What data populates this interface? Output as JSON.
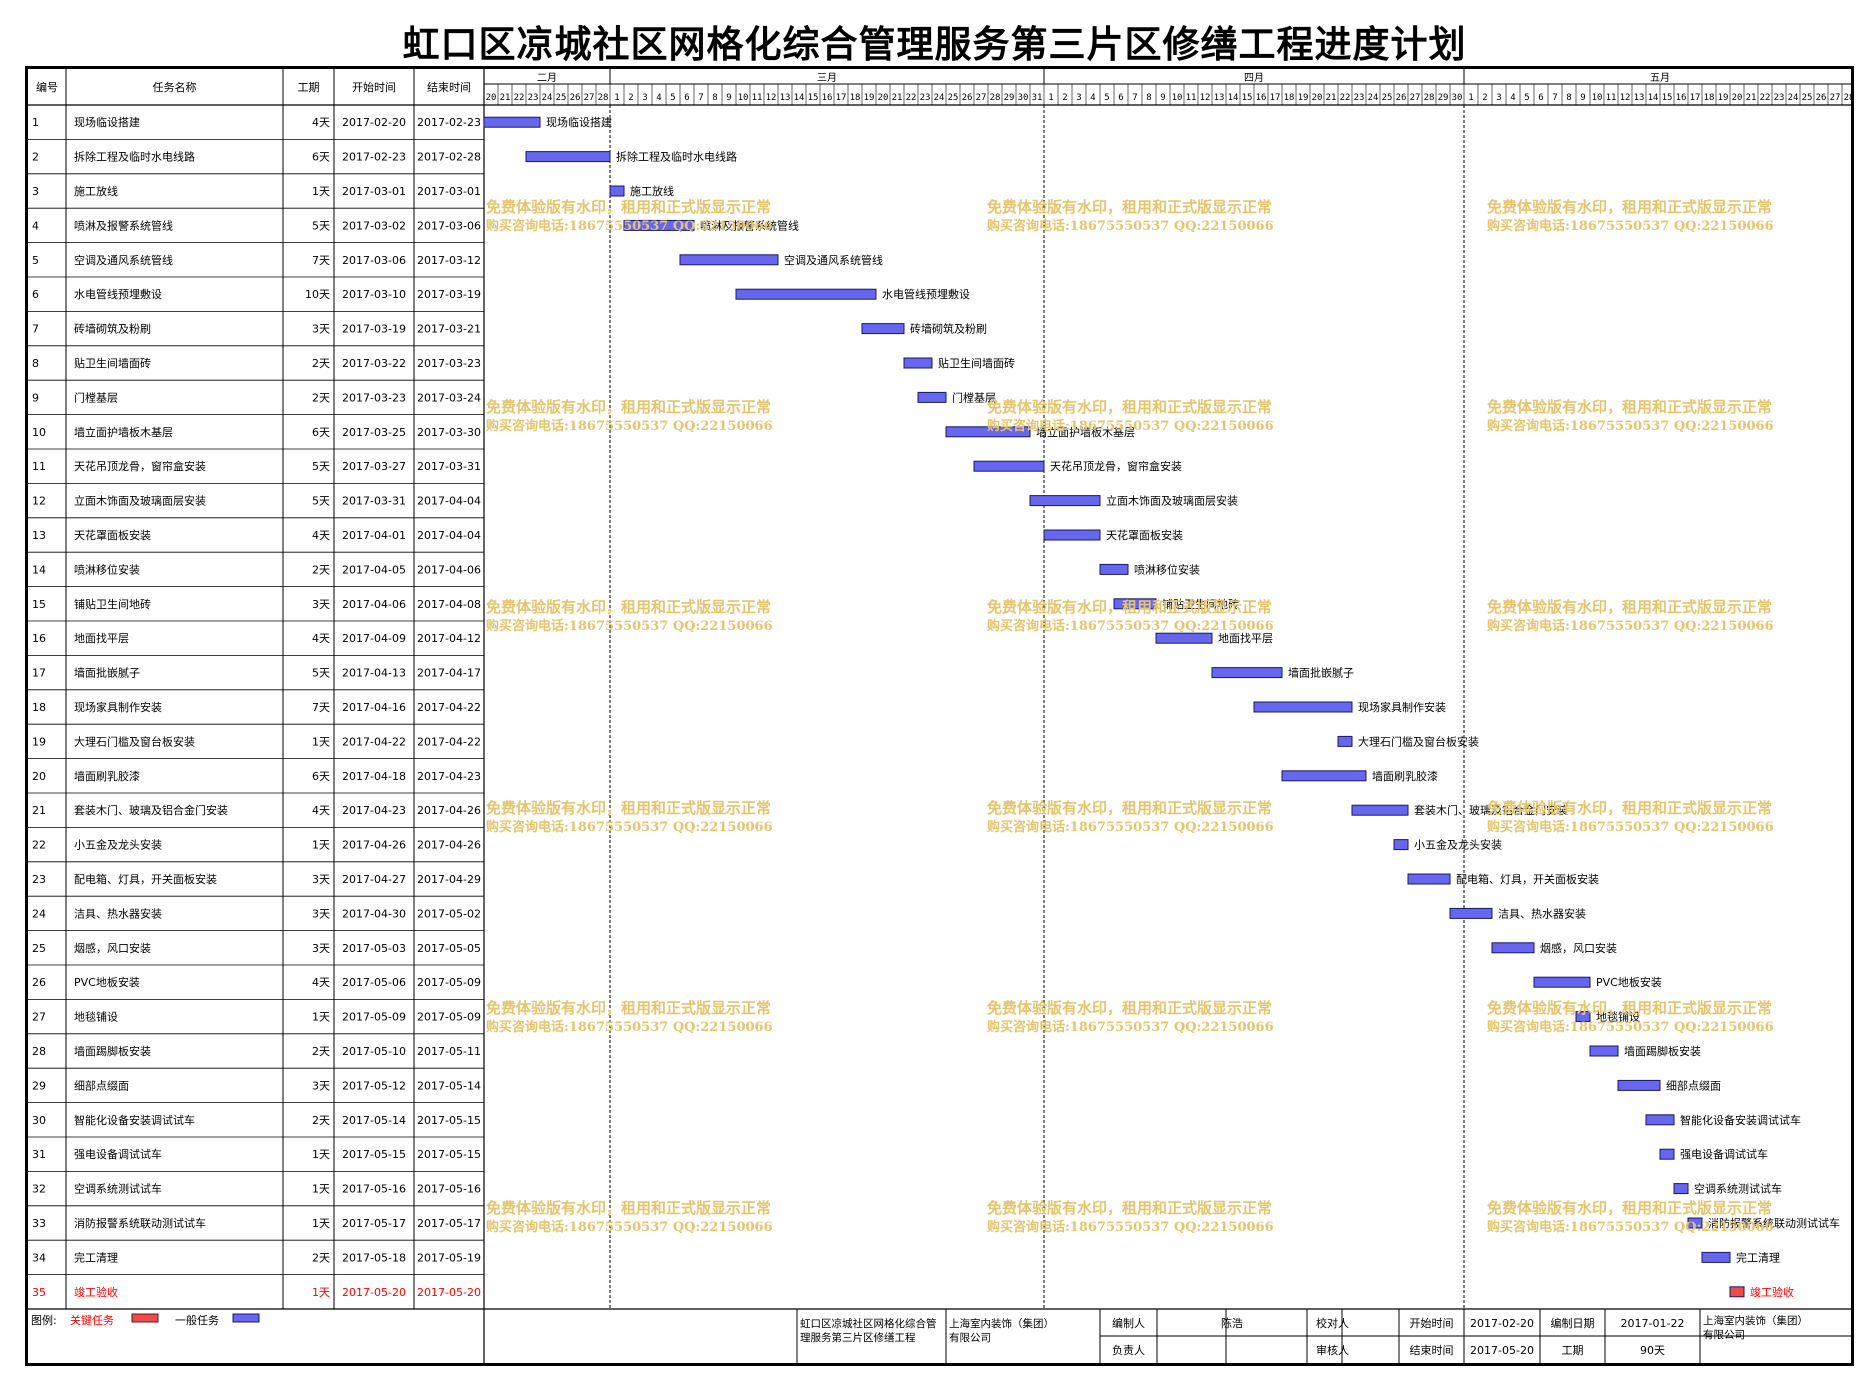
{
  "title": "虹口区凉城社区网格化综合管理服务第三片区修缮工程进度计划",
  "headers": {
    "id": "编号",
    "name": "任务名称",
    "dur": "工期",
    "start": "开始时间",
    "end": "结束时间"
  },
  "months": [
    "二月",
    "三月",
    "四月",
    "五月"
  ],
  "watermark": {
    "line1": "免费体验版有水印，租用和正式版显示正常",
    "line2": "购买咨询电话:18675550537 QQ:22150066"
  },
  "legend": {
    "label": "图例:",
    "critical_label": "关键任务",
    "normal_label": "一般任务"
  },
  "colors": {
    "normal": "#6666ee",
    "critical": "#ee4c4c",
    "critical_text": "#ff0000",
    "watermark": "#e5c46e"
  },
  "footer": {
    "project": "虹口区凉城社区网格化综合管理服务第三片区修缮工程",
    "company": "上海室内装饰（集团）有限公司",
    "editor_label": "编制人",
    "editor": "陈浩",
    "checker_label": "校对人",
    "checker": "",
    "owner_label": "负责人",
    "owner": "",
    "reviewer_label": "审核人",
    "reviewer": "",
    "start_label": "开始时间",
    "start": "2017-02-20",
    "end_label": "结束时间",
    "end": "2017-05-20",
    "date_label": "编制日期",
    "date": "2017-01-22",
    "dur_label": "工期",
    "dur": "90天",
    "company2": "上海室内装饰（集团）有限公司"
  },
  "chart_data": {
    "type": "gantt",
    "x_range": [
      "2017-02-20",
      "2017-05-28"
    ],
    "tasks": [
      {
        "id": "1",
        "name": "现场临设搭建",
        "dur": "4天",
        "start": "2017-02-20",
        "end": "2017-02-23",
        "critical": false
      },
      {
        "id": "2",
        "name": "拆除工程及临时水电线路",
        "dur": "6天",
        "start": "2017-02-23",
        "end": "2017-02-28",
        "critical": false
      },
      {
        "id": "3",
        "name": "施工放线",
        "dur": "1天",
        "start": "2017-03-01",
        "end": "2017-03-01",
        "critical": false
      },
      {
        "id": "4",
        "name": "喷淋及报警系统管线",
        "dur": "5天",
        "start": "2017-03-02",
        "end": "2017-03-06",
        "critical": false
      },
      {
        "id": "5",
        "name": "空调及通风系统管线",
        "dur": "7天",
        "start": "2017-03-06",
        "end": "2017-03-12",
        "critical": false
      },
      {
        "id": "6",
        "name": "水电管线预埋敷设",
        "dur": "10天",
        "start": "2017-03-10",
        "end": "2017-03-19",
        "critical": false
      },
      {
        "id": "7",
        "name": "砖墙砌筑及粉刷",
        "dur": "3天",
        "start": "2017-03-19",
        "end": "2017-03-21",
        "critical": false
      },
      {
        "id": "8",
        "name": "贴卫生间墙面砖",
        "dur": "2天",
        "start": "2017-03-22",
        "end": "2017-03-23",
        "critical": false
      },
      {
        "id": "9",
        "name": "门樘基层",
        "dur": "2天",
        "start": "2017-03-23",
        "end": "2017-03-24",
        "critical": false
      },
      {
        "id": "10",
        "name": "墙立面护墙板木基层",
        "dur": "6天",
        "start": "2017-03-25",
        "end": "2017-03-30",
        "critical": false
      },
      {
        "id": "11",
        "name": "天花吊顶龙骨，窗帘盒安装",
        "dur": "5天",
        "start": "2017-03-27",
        "end": "2017-03-31",
        "critical": false
      },
      {
        "id": "12",
        "name": "立面木饰面及玻璃面层安装",
        "dur": "5天",
        "start": "2017-03-31",
        "end": "2017-04-04",
        "critical": false
      },
      {
        "id": "13",
        "name": "天花罩面板安装",
        "dur": "4天",
        "start": "2017-04-01",
        "end": "2017-04-04",
        "critical": false
      },
      {
        "id": "14",
        "name": "喷淋移位安装",
        "dur": "2天",
        "start": "2017-04-05",
        "end": "2017-04-06",
        "critical": false
      },
      {
        "id": "15",
        "name": "铺贴卫生间地砖",
        "dur": "3天",
        "start": "2017-04-06",
        "end": "2017-04-08",
        "critical": false
      },
      {
        "id": "16",
        "name": "地面找平层",
        "dur": "4天",
        "start": "2017-04-09",
        "end": "2017-04-12",
        "critical": false
      },
      {
        "id": "17",
        "name": "墙面批嵌腻子",
        "dur": "5天",
        "start": "2017-04-13",
        "end": "2017-04-17",
        "critical": false
      },
      {
        "id": "18",
        "name": "现场家具制作安装",
        "dur": "7天",
        "start": "2017-04-16",
        "end": "2017-04-22",
        "critical": false
      },
      {
        "id": "19",
        "name": "大理石门槛及窗台板安装",
        "dur": "1天",
        "start": "2017-04-22",
        "end": "2017-04-22",
        "critical": false
      },
      {
        "id": "20",
        "name": "墙面刷乳胶漆",
        "dur": "6天",
        "start": "2017-04-18",
        "end": "2017-04-23",
        "critical": false
      },
      {
        "id": "21",
        "name": "套装木门、玻璃及铝合金门安装",
        "dur": "4天",
        "start": "2017-04-23",
        "end": "2017-04-26",
        "critical": false
      },
      {
        "id": "22",
        "name": "小五金及龙头安装",
        "dur": "1天",
        "start": "2017-04-26",
        "end": "2017-04-26",
        "critical": false
      },
      {
        "id": "23",
        "name": "配电箱、灯具，开关面板安装",
        "dur": "3天",
        "start": "2017-04-27",
        "end": "2017-04-29",
        "critical": false
      },
      {
        "id": "24",
        "name": "洁具、热水器安装",
        "dur": "3天",
        "start": "2017-04-30",
        "end": "2017-05-02",
        "critical": false
      },
      {
        "id": "25",
        "name": "烟感，风口安装",
        "dur": "3天",
        "start": "2017-05-03",
        "end": "2017-05-05",
        "critical": false
      },
      {
        "id": "26",
        "name": "PVC地板安装",
        "dur": "4天",
        "start": "2017-05-06",
        "end": "2017-05-09",
        "critical": false
      },
      {
        "id": "27",
        "name": "地毯铺设",
        "dur": "1天",
        "start": "2017-05-09",
        "end": "2017-05-09",
        "critical": false
      },
      {
        "id": "28",
        "name": "墙面踢脚板安装",
        "dur": "2天",
        "start": "2017-05-10",
        "end": "2017-05-11",
        "critical": false
      },
      {
        "id": "29",
        "name": "细部点缀面",
        "dur": "3天",
        "start": "2017-05-12",
        "end": "2017-05-14",
        "critical": false
      },
      {
        "id": "30",
        "name": "智能化设备安装调试试车",
        "dur": "2天",
        "start": "2017-05-14",
        "end": "2017-05-15",
        "critical": false
      },
      {
        "id": "31",
        "name": "强电设备调试试车",
        "dur": "1天",
        "start": "2017-05-15",
        "end": "2017-05-15",
        "critical": false
      },
      {
        "id": "32",
        "name": "空调系统测试试车",
        "dur": "1天",
        "start": "2017-05-16",
        "end": "2017-05-16",
        "critical": false
      },
      {
        "id": "33",
        "name": "消防报警系统联动测试试车",
        "dur": "1天",
        "start": "2017-05-17",
        "end": "2017-05-17",
        "critical": false
      },
      {
        "id": "34",
        "name": "完工清理",
        "dur": "2天",
        "start": "2017-05-18",
        "end": "2017-05-19",
        "critical": false
      },
      {
        "id": "35",
        "name": "竣工验收",
        "dur": "1天",
        "start": "2017-05-20",
        "end": "2017-05-20",
        "critical": true
      }
    ]
  }
}
